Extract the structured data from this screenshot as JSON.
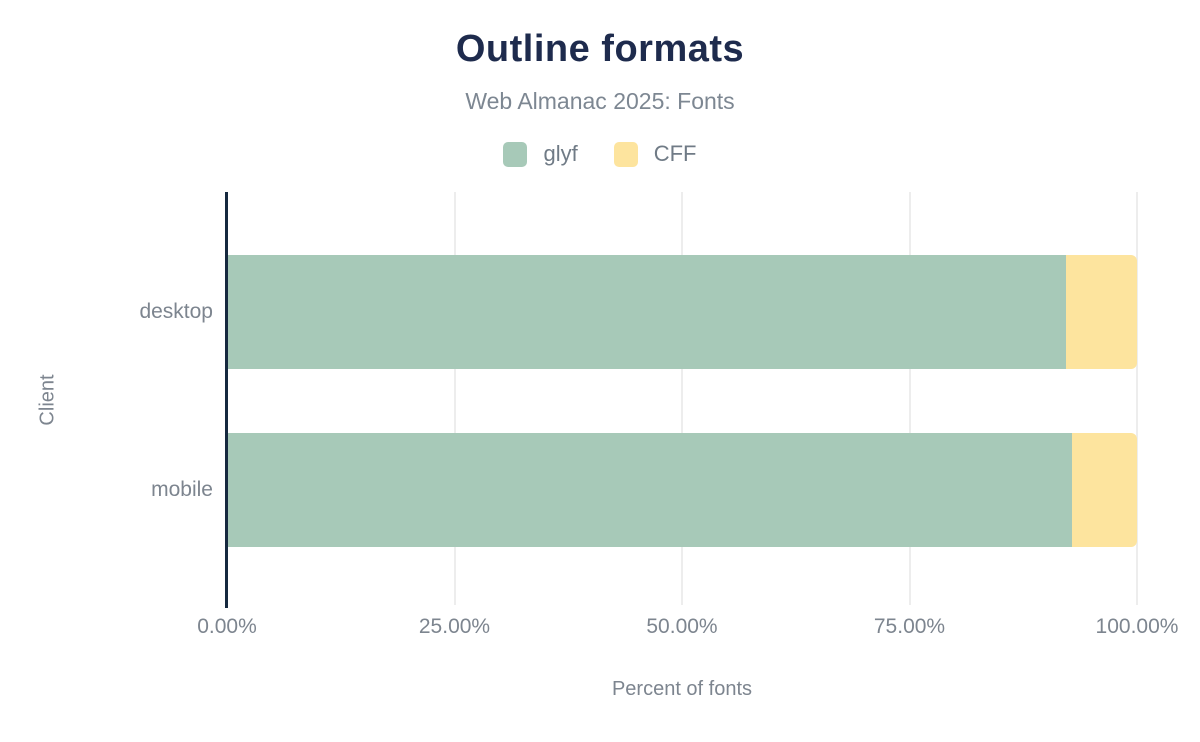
{
  "title": "Outline formats",
  "subtitle": "Web Almanac 2025: Fonts",
  "legend": {
    "items": [
      {
        "label": "glyf",
        "color": "#a7c9b8"
      },
      {
        "label": "CFF",
        "color": "#fde49e"
      }
    ]
  },
  "chart_data": {
    "type": "bar",
    "orientation": "horizontal",
    "stacked": true,
    "title": "Outline formats",
    "subtitle": "Web Almanac 2025: Fonts",
    "categories": [
      "desktop",
      "mobile"
    ],
    "series": [
      {
        "name": "glyf",
        "color": "#a7c9b8",
        "values": [
          92.2,
          92.9
        ]
      },
      {
        "name": "CFF",
        "color": "#fde49e",
        "values": [
          7.8,
          7.1
        ]
      }
    ],
    "xlabel": "Percent of fonts",
    "ylabel": "Client",
    "xlim": [
      0,
      100
    ],
    "x_tick_values": [
      0,
      25,
      50,
      75,
      100
    ],
    "x_tick_labels": [
      "0.00%",
      "25.00%",
      "50.00%",
      "75.00%",
      "100.00%"
    ],
    "grid": true,
    "legend_position": "top"
  },
  "colors": {
    "title_text": "#1e2b4d",
    "muted_text": "#7d858f",
    "axis_line": "#16293f",
    "gridline": "#ededed"
  }
}
